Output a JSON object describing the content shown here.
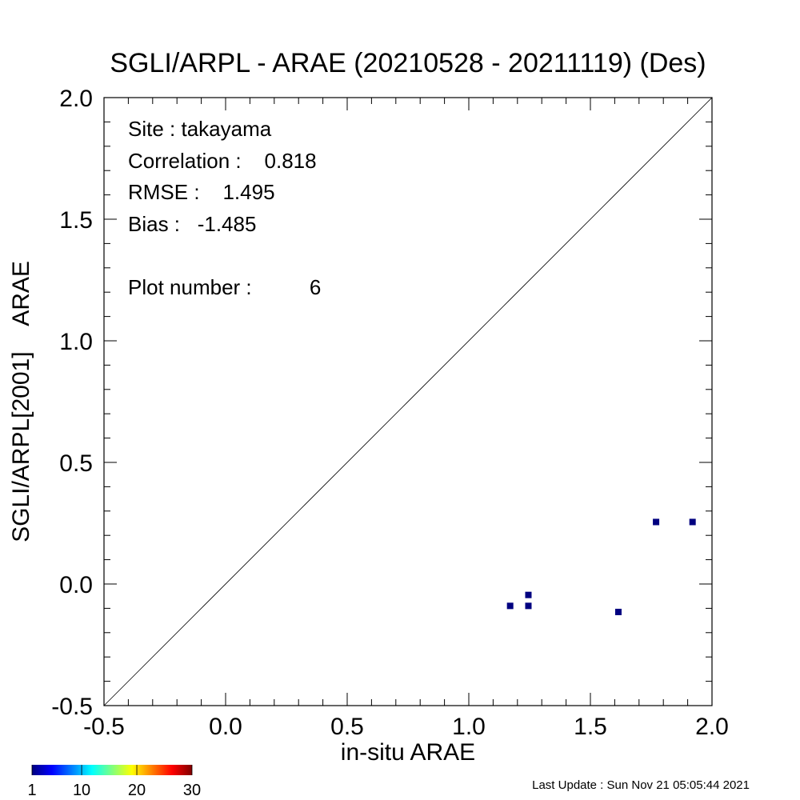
{
  "chart_data": {
    "type": "scatter",
    "title": "SGLI/ARPL - ARAE (20210528 - 20211119) (Des)",
    "xlabel": "in-situ ARAE",
    "ylabel": "SGLI/ARPL[2001]    ARAE",
    "xlim": [
      -0.5,
      2.0
    ],
    "ylim": [
      -0.5,
      2.0
    ],
    "x_ticks": [
      "-0.5",
      "0.0",
      "0.5",
      "1.0",
      "1.5",
      "2.0"
    ],
    "y_ticks": [
      "-0.5",
      "0.0",
      "0.5",
      "1.0",
      "1.5",
      "2.0"
    ],
    "one_to_one_line": true,
    "grid": false,
    "point_color": "#000080",
    "points": [
      {
        "x": 1.17,
        "y": -0.09
      },
      {
        "x": 1.245,
        "y": -0.045
      },
      {
        "x": 1.245,
        "y": -0.09
      },
      {
        "x": 1.615,
        "y": -0.115
      },
      {
        "x": 1.77,
        "y": 0.255
      },
      {
        "x": 1.92,
        "y": 0.255
      }
    ],
    "stats": {
      "site": "Site : takayama",
      "correlation": "Correlation :    0.818",
      "rmse": "RMSE :    1.495",
      "bias": "Bias :   -1.485",
      "plot_number": "Plot number :          6"
    },
    "colorbar": {
      "ticks": [
        "1",
        "10",
        "20",
        "30"
      ],
      "colors": [
        "#00007f",
        "#0000ff",
        "#007fff",
        "#00ffff",
        "#7fff7f",
        "#ffff00",
        "#ff7f00",
        "#ff0000",
        "#7f0000"
      ]
    }
  },
  "footer": {
    "last_update": "Last Update : Sun Nov 21 05:05:44 2021"
  }
}
